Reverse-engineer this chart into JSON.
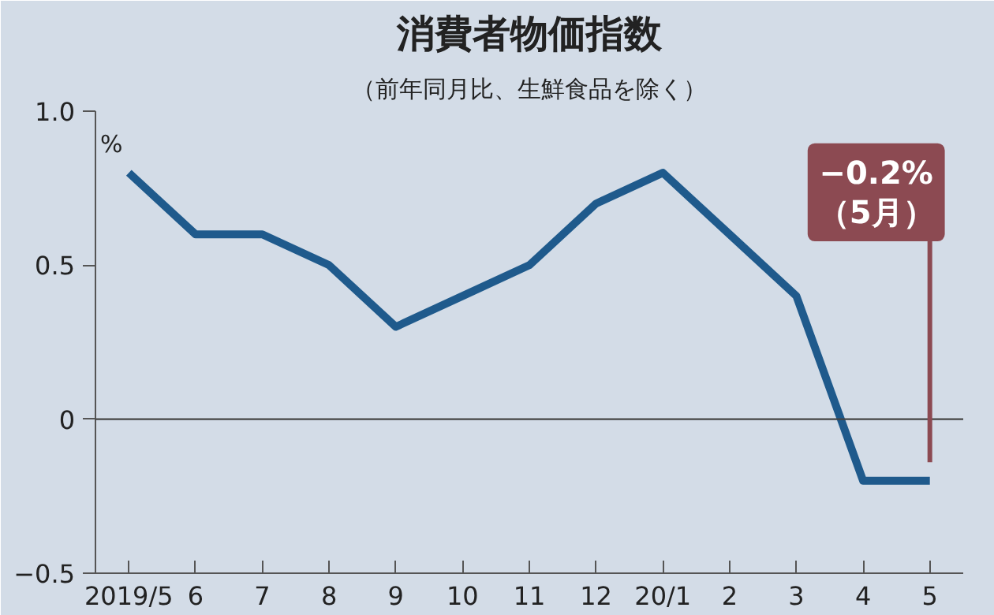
{
  "chart_data": {
    "type": "line",
    "title": "消費者物価指数",
    "subtitle": "（前年同月比、生鮮食品を除く）",
    "ylabel": "%",
    "categories": [
      "2019/5",
      "6",
      "7",
      "8",
      "9",
      "10",
      "11",
      "12",
      "20/1",
      "2",
      "3",
      "4",
      "5"
    ],
    "series": [
      {
        "color": "#1f5a8c",
        "values": [
          0.8,
          0.6,
          0.6,
          0.5,
          0.3,
          0.4,
          0.5,
          0.7,
          0.8,
          0.6,
          0.4,
          -0.2,
          -0.2
        ]
      }
    ],
    "ylim": [
      -0.5,
      1.0
    ],
    "yticks": [
      -0.5,
      0.5,
      {
        "value": 0,
        "label": "0"
      },
      {
        "value": 1.0,
        "label": "1.0"
      }
    ],
    "ref_lines": [
      {
        "axis": "y",
        "value": 0,
        "color": "#444444"
      }
    ],
    "annotations": [
      "−0.2%\n（5月）"
    ],
    "grid": false,
    "marker": "none",
    "line_style": "solid"
  }
}
